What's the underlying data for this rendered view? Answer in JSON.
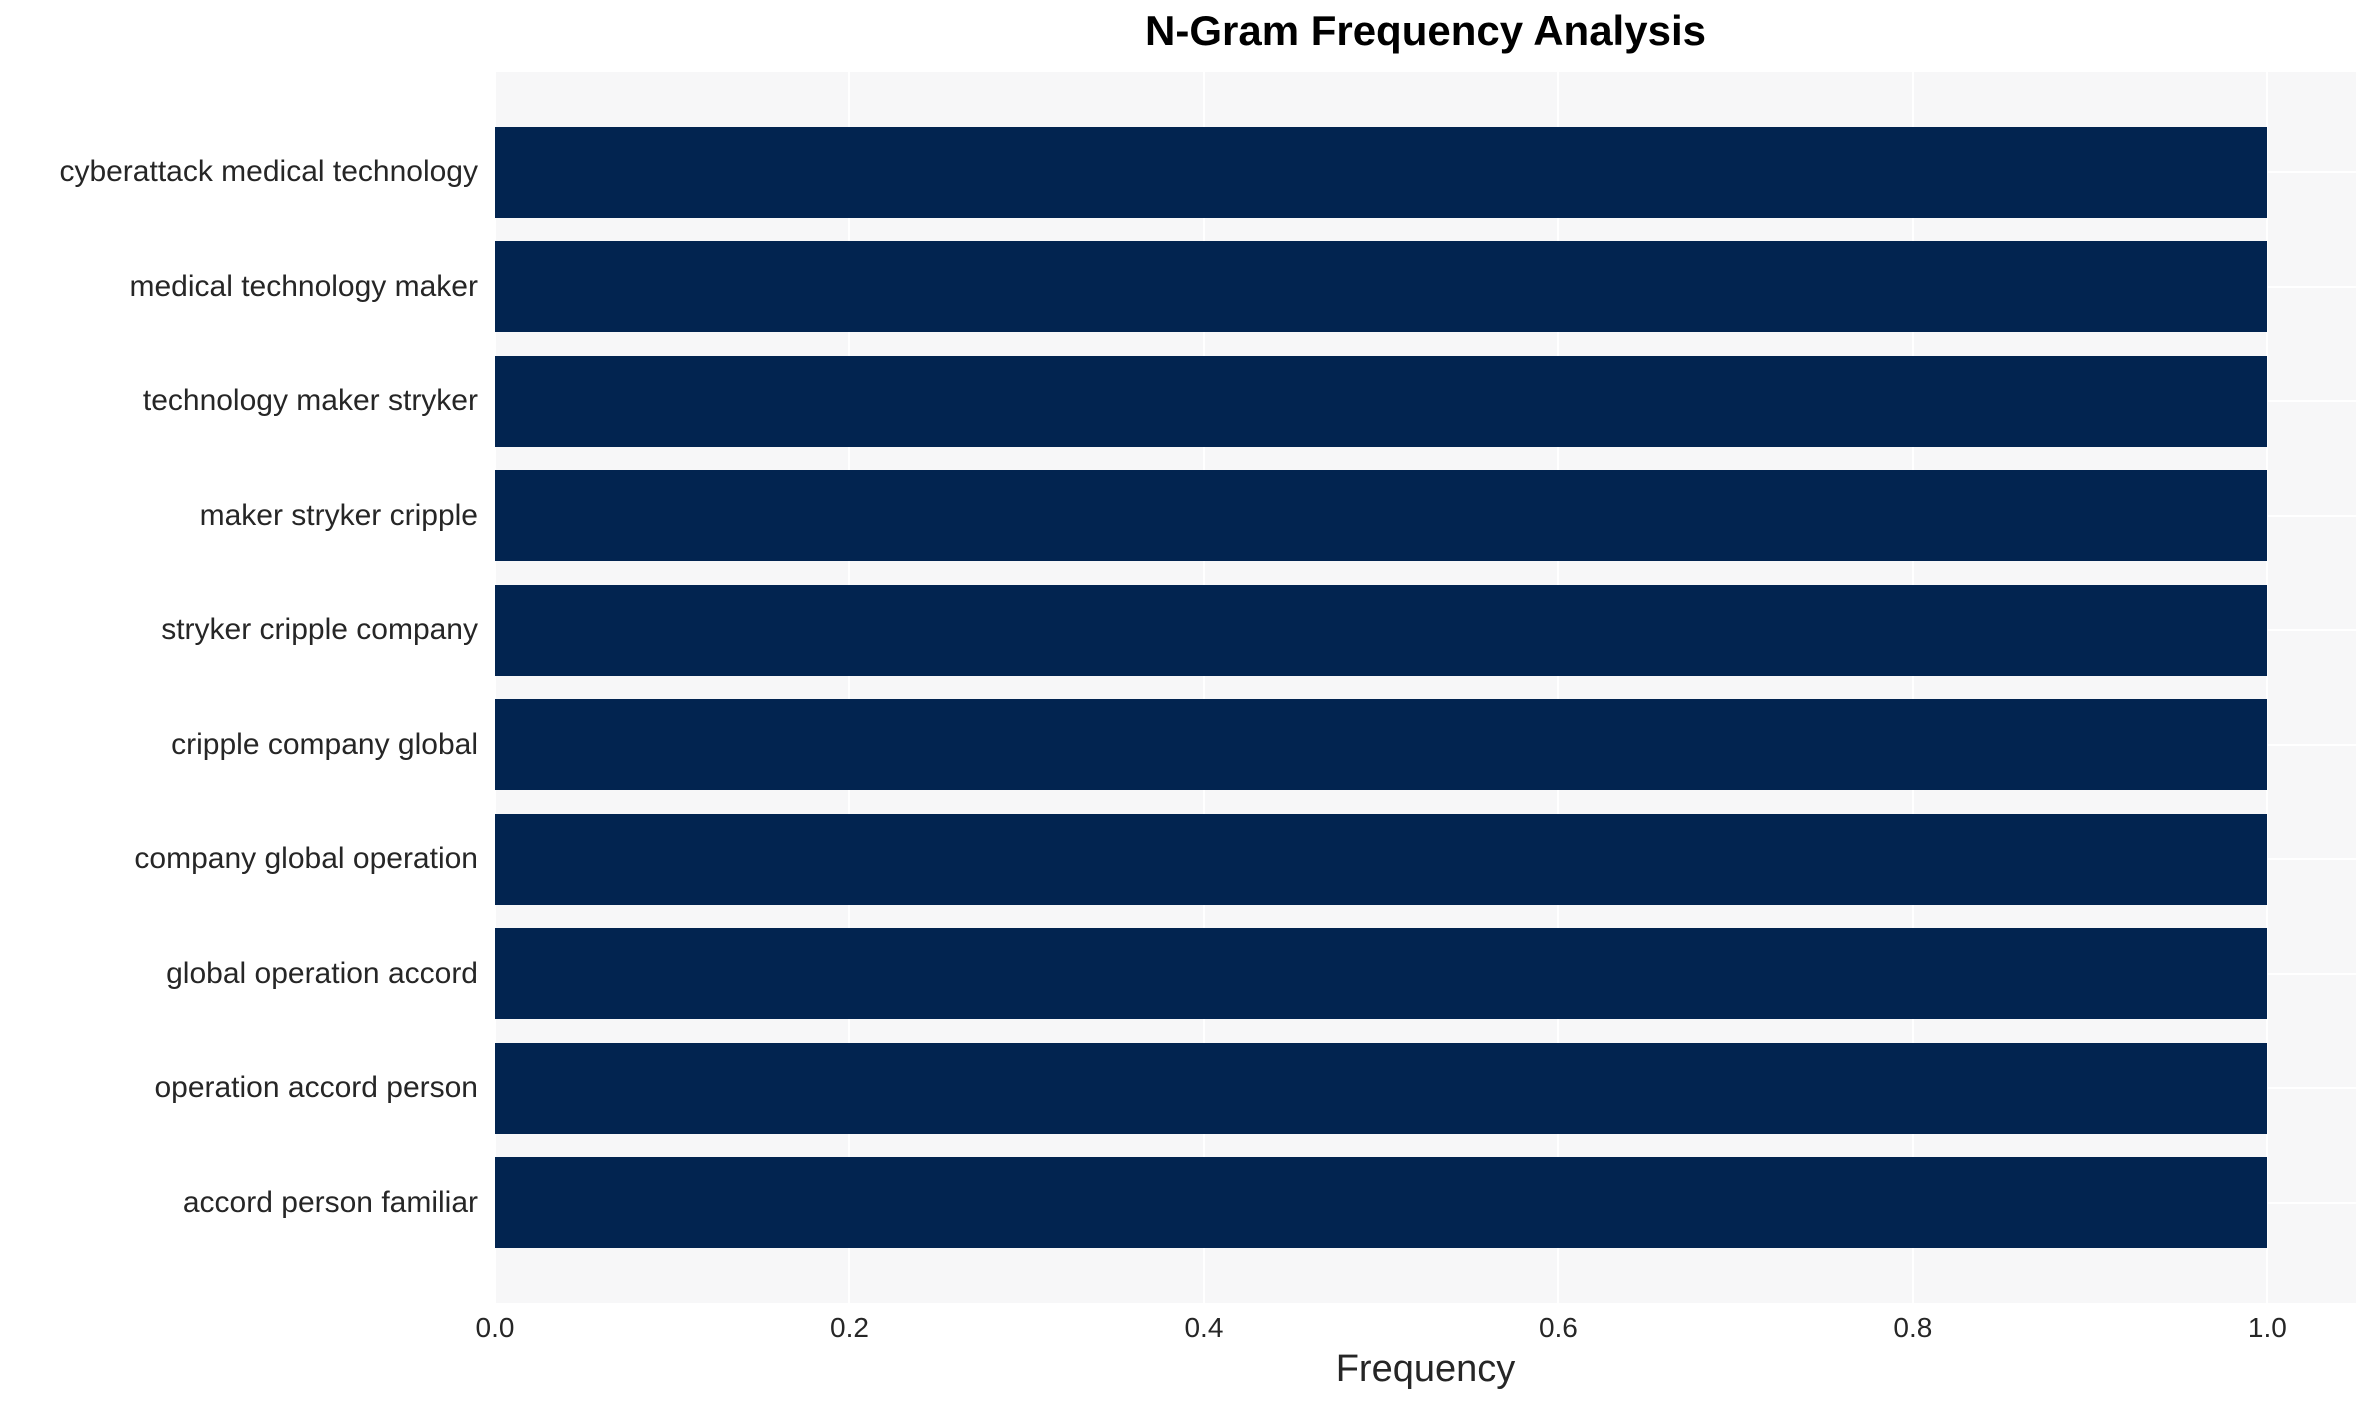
{
  "chart_data": {
    "type": "bar",
    "orientation": "horizontal",
    "title": "N-Gram Frequency Analysis",
    "xlabel": "Frequency",
    "ylabel": "",
    "categories": [
      "cyberattack medical technology",
      "medical technology maker",
      "technology maker stryker",
      "maker stryker cripple",
      "stryker cripple company",
      "cripple company global",
      "company global operation",
      "global operation accord",
      "operation accord person",
      "accord person familiar"
    ],
    "values": [
      1.0,
      1.0,
      1.0,
      1.0,
      1.0,
      1.0,
      1.0,
      1.0,
      1.0,
      1.0
    ],
    "xlim": [
      0,
      1.05
    ],
    "xticks": [
      0.0,
      0.2,
      0.4,
      0.6,
      0.8,
      1.0
    ],
    "xtick_labels": [
      "0.0",
      "0.2",
      "0.4",
      "0.6",
      "0.8",
      "1.0"
    ],
    "grid": true,
    "legend": false,
    "colors": {
      "bar": "#022450",
      "plot_background": "#f7f7f8",
      "figure_background": "#ffffff",
      "gridline": "#ffffff",
      "tick_text": "#262626",
      "title_text": "#000000"
    }
  }
}
